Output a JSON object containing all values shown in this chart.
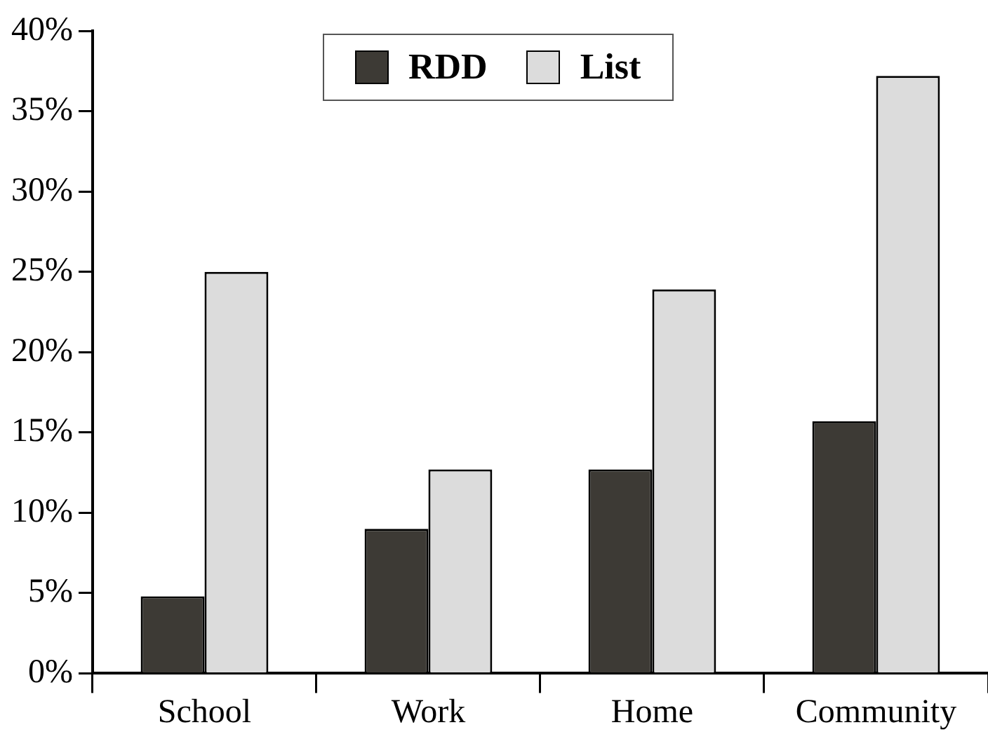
{
  "chart_data": {
    "type": "bar",
    "categories": [
      "School",
      "Work",
      "Home",
      "Community"
    ],
    "series": [
      {
        "name": "RDD",
        "color": "#3d3a35",
        "values": [
          4.8,
          9.0,
          12.7,
          15.7
        ]
      },
      {
        "name": "List",
        "color": "#dcdcdc",
        "values": [
          25.0,
          12.7,
          23.9,
          37.2
        ]
      }
    ],
    "ylim": [
      0,
      40
    ],
    "yticks": [
      {
        "value": 0,
        "label": "0%"
      },
      {
        "value": 5,
        "label": "5%"
      },
      {
        "value": 10,
        "label": "10%"
      },
      {
        "value": 15,
        "label": "15%"
      },
      {
        "value": 20,
        "label": "20%"
      },
      {
        "value": 25,
        "label": "25%"
      },
      {
        "value": 30,
        "label": "30%"
      },
      {
        "value": 35,
        "label": "35%"
      },
      {
        "value": 40,
        "label": "40%"
      }
    ],
    "grid": false,
    "legend": "top"
  }
}
